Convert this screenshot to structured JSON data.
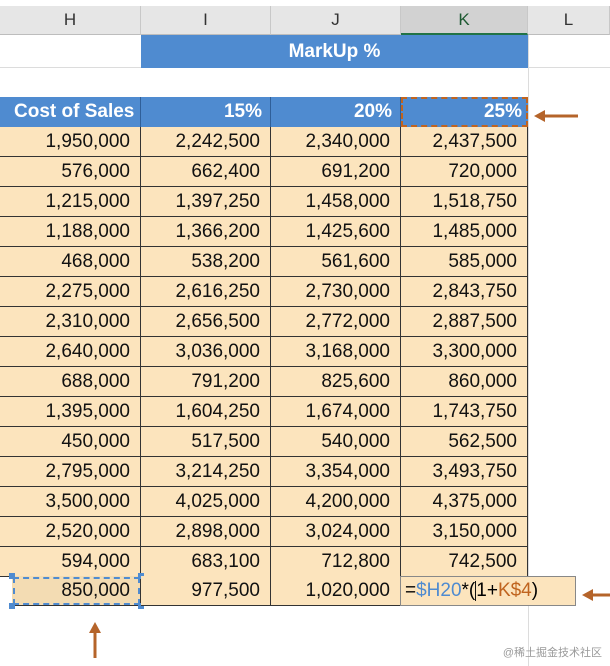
{
  "columns": [
    "H",
    "I",
    "J",
    "K",
    "L"
  ],
  "markup_title": "MarkUp %",
  "headers": [
    "Cost of Sales",
    "15%",
    "20%",
    "25%"
  ],
  "rows": [
    [
      "1,950,000",
      "2,242,500",
      "2,340,000",
      "2,437,500"
    ],
    [
      "576,000",
      "662,400",
      "691,200",
      "720,000"
    ],
    [
      "1,215,000",
      "1,397,250",
      "1,458,000",
      "1,518,750"
    ],
    [
      "1,188,000",
      "1,366,200",
      "1,425,600",
      "1,485,000"
    ],
    [
      "468,000",
      "538,200",
      "561,600",
      "585,000"
    ],
    [
      "2,275,000",
      "2,616,250",
      "2,730,000",
      "2,843,750"
    ],
    [
      "2,310,000",
      "2,656,500",
      "2,772,000",
      "2,887,500"
    ],
    [
      "2,640,000",
      "3,036,000",
      "3,168,000",
      "3,300,000"
    ],
    [
      "688,000",
      "791,200",
      "825,600",
      "860,000"
    ],
    [
      "1,395,000",
      "1,604,250",
      "1,674,000",
      "1,743,750"
    ],
    [
      "450,000",
      "517,500",
      "540,000",
      "562,500"
    ],
    [
      "2,795,000",
      "3,214,250",
      "3,354,000",
      "3,493,750"
    ],
    [
      "3,500,000",
      "4,025,000",
      "4,200,000",
      "4,375,000"
    ],
    [
      "2,520,000",
      "2,898,000",
      "3,024,000",
      "3,150,000"
    ],
    [
      "594,000",
      "683,100",
      "712,800",
      "742,500"
    ]
  ],
  "last_row": [
    "850,000",
    "977,500",
    "1,020,000"
  ],
  "formula": {
    "eq": "=",
    "ref1": "$H20",
    "op": "*(",
    "num": "1+",
    "ref2": "K$4",
    "close": ")"
  },
  "colors": {
    "header_blue": "#4f8bd0",
    "cell_fill": "#fce4bd",
    "arrow": "#b5642a",
    "ref1": "#4f8bd0",
    "ref2": "#c0641f"
  },
  "watermark": "@稀土掘金技术社区"
}
